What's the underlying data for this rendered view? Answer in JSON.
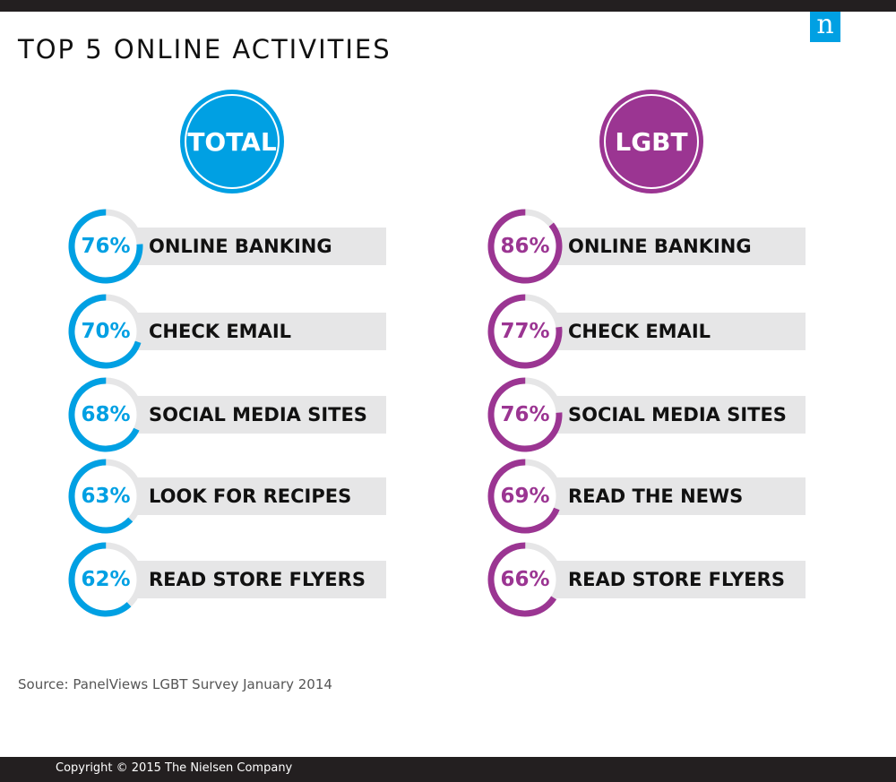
{
  "title": "TOP 5 ONLINE ACTIVITIES",
  "logo_letter": "n",
  "source": "Source: PanelViews LGBT Survey January 2014",
  "copyright": "Copyright © 2015 The Nielsen Company",
  "colors": {
    "total": "#00a0e3",
    "lgbt": "#9b3592",
    "track": "#e6e6e7",
    "bar": "#e6e6e7"
  },
  "chart_data": [
    {
      "type": "bar",
      "title": "TOTAL",
      "categories": [
        "ONLINE BANKING",
        "CHECK EMAIL",
        "SOCIAL MEDIA SITES",
        "LOOK FOR RECIPES",
        "READ STORE FLYERS"
      ],
      "values": [
        76,
        70,
        68,
        63,
        62
      ],
      "labels": [
        "76%",
        "70%",
        "68%",
        "63%",
        "62%"
      ],
      "unit": "%",
      "ylim": [
        0,
        100
      ]
    },
    {
      "type": "bar",
      "title": "LGBT",
      "categories": [
        "ONLINE BANKING",
        "CHECK EMAIL",
        "SOCIAL MEDIA SITES",
        "READ THE NEWS",
        "READ STORE FLYERS"
      ],
      "values": [
        86,
        77,
        76,
        69,
        66
      ],
      "labels": [
        "86%",
        "77%",
        "76%",
        "69%",
        "66%"
      ],
      "unit": "%",
      "ylim": [
        0,
        100
      ]
    }
  ]
}
